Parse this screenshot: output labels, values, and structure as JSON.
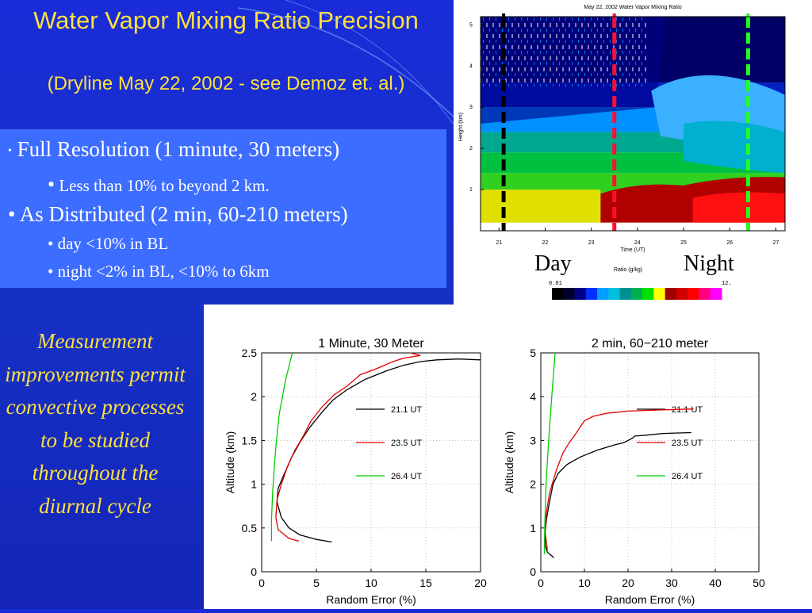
{
  "slide": {
    "title": "Water Vapor Mixing Ratio Precision",
    "subtitle": "(Dryline May 22, 2002 - see Demoz et. al.)",
    "bullets": [
      {
        "text": "Full Resolution (1 minute, 30 meters)",
        "level": 1,
        "marker": "•"
      },
      {
        "text": "Less than 10% to beyond 2 km.",
        "level": 2,
        "marker": "•"
      },
      {
        "text": "As Distributed (2 min, 60-210 meters)",
        "level": 1,
        "marker": "•"
      },
      {
        "text": "day <10% in BL",
        "level": 2,
        "marker": "•"
      },
      {
        "text": "night <2% in BL, <10% to 6km",
        "level": 2,
        "marker": "•"
      }
    ],
    "measurement_text": "Measurement improvements permit convective processes to be studied throughout the diurnal cycle",
    "colors": {
      "background": "#1a2bd8",
      "title": "#ffe040",
      "bullet_box": "#3d6dff",
      "text": "#ffffff"
    }
  },
  "heatmap": {
    "title": "May 22, 2002 Water Vapor Mixing Ratio",
    "xlabel": "Time (UT)",
    "ylabel": "Height (km)",
    "x_ticks": [
      "21",
      "22",
      "23",
      "24",
      "25",
      "26",
      "27"
    ],
    "y_ticks": [
      "1",
      "2",
      "3",
      "4",
      "5"
    ],
    "day_label": "Day",
    "night_label": "Night",
    "colorbar_label": "Ratio (g/kg)",
    "colorbar_min": "0.01",
    "colorbar_max": "12.",
    "colorbar_colors": [
      "#000000",
      "#000030",
      "#000088",
      "#0030ff",
      "#00a0ff",
      "#00c0e0",
      "#009090",
      "#00b050",
      "#00e000",
      "#ffff00",
      "#a00000",
      "#d00000",
      "#ff0000",
      "#ff0080",
      "#ff00ff"
    ],
    "markers": [
      {
        "time": 21.1,
        "color": "#000000"
      },
      {
        "time": 23.5,
        "color": "#ff1030"
      },
      {
        "time": 26.4,
        "color": "#20ff20"
      }
    ]
  },
  "chart_data": [
    {
      "type": "line",
      "title": "1 Minute, 30 Meter",
      "xlabel": "Random Error (%)",
      "ylabel": "Altitude (km)",
      "xlim": [
        0,
        20
      ],
      "ylim": [
        0,
        2.5
      ],
      "x_ticks": [
        "0",
        "5",
        "10",
        "15",
        "20"
      ],
      "y_ticks": [
        "0",
        "0.5",
        "1",
        "1.5",
        "2",
        "2.5"
      ],
      "grid": true,
      "series": [
        {
          "name": "21.1 UT",
          "color": "#000000",
          "points": [
            [
              6.4,
              0.34
            ],
            [
              5,
              0.37
            ],
            [
              3.5,
              0.42
            ],
            [
              2.5,
              0.5
            ],
            [
              1.8,
              0.62
            ],
            [
              1.4,
              0.8
            ],
            [
              1.5,
              0.95
            ],
            [
              2,
              1.1
            ],
            [
              2.7,
              1.3
            ],
            [
              3.5,
              1.48
            ],
            [
              4.4,
              1.65
            ],
            [
              5.5,
              1.82
            ],
            [
              6.5,
              1.96
            ],
            [
              7.8,
              2.08
            ],
            [
              9.5,
              2.2
            ],
            [
              11.5,
              2.3
            ],
            [
              13,
              2.36
            ],
            [
              14.5,
              2.4
            ],
            [
              16,
              2.42
            ],
            [
              18,
              2.43
            ],
            [
              20,
              2.42
            ]
          ]
        },
        {
          "name": "23.5 UT",
          "color": "#e00000",
          "points": [
            [
              3.4,
              0.35
            ],
            [
              2.5,
              0.38
            ],
            [
              1.5,
              0.48
            ],
            [
              1.3,
              0.62
            ],
            [
              1.4,
              0.82
            ],
            [
              1.8,
              1.0
            ],
            [
              2.3,
              1.18
            ],
            [
              3,
              1.38
            ],
            [
              3.8,
              1.55
            ],
            [
              4.5,
              1.72
            ],
            [
              5.5,
              1.88
            ],
            [
              6.6,
              2.02
            ],
            [
              7.8,
              2.12
            ],
            [
              9,
              2.25
            ],
            [
              10.5,
              2.32
            ],
            [
              12,
              2.4
            ],
            [
              13,
              2.44
            ],
            [
              14.5,
              2.47
            ],
            [
              13.6,
              2.5
            ]
          ]
        },
        {
          "name": "26.4 UT",
          "color": "#00cc00",
          "points": [
            [
              0.9,
              0.35
            ],
            [
              0.9,
              0.6
            ],
            [
              1,
              0.9
            ],
            [
              1.15,
              1.2
            ],
            [
              1.35,
              1.5
            ],
            [
              1.6,
              1.8
            ],
            [
              1.9,
              2.0
            ],
            [
              2.2,
              2.2
            ],
            [
              2.5,
              2.35
            ],
            [
              2.8,
              2.5
            ]
          ]
        }
      ],
      "legend": "right"
    },
    {
      "type": "line",
      "title": "2 min, 60−210 meter",
      "xlabel": "Random Error (%)",
      "ylabel": "Altitude (km)",
      "xlim": [
        0,
        50
      ],
      "ylim": [
        0,
        5
      ],
      "x_ticks": [
        "0",
        "10",
        "20",
        "30",
        "40",
        "50"
      ],
      "y_ticks": [
        "0",
        "1",
        "2",
        "3",
        "4",
        "5"
      ],
      "grid": true,
      "series": [
        {
          "name": "21.1 UT",
          "color": "#000000",
          "points": [
            [
              3,
              0.32
            ],
            [
              1.5,
              0.45
            ],
            [
              1,
              0.6
            ],
            [
              1,
              0.9
            ],
            [
              1.3,
              1.2
            ],
            [
              2,
              1.6
            ],
            [
              2.8,
              2.0
            ],
            [
              4,
              2.25
            ],
            [
              6,
              2.45
            ],
            [
              9,
              2.62
            ],
            [
              13,
              2.78
            ],
            [
              17,
              2.9
            ],
            [
              19,
              2.95
            ],
            [
              20,
              3.0
            ],
            [
              21,
              3.05
            ],
            [
              21.5,
              3.1
            ],
            [
              24,
              3.12
            ],
            [
              28,
              3.16
            ],
            [
              34.5,
              3.18
            ]
          ]
        },
        {
          "name": "23.5 UT",
          "color": "#e00000",
          "points": [
            [
              1.5,
              0.5
            ],
            [
              1,
              0.9
            ],
            [
              1.2,
              1.3
            ],
            [
              2,
              1.8
            ],
            [
              3.5,
              2.3
            ],
            [
              5,
              2.7
            ],
            [
              6.5,
              2.95
            ],
            [
              8,
              3.15
            ],
            [
              9,
              3.3
            ],
            [
              10,
              3.45
            ],
            [
              12,
              3.55
            ],
            [
              15,
              3.62
            ],
            [
              20,
              3.67
            ],
            [
              28,
              3.7
            ],
            [
              35,
              3.72
            ]
          ]
        },
        {
          "name": "26.4 UT",
          "color": "#00cc00",
          "points": [
            [
              0.8,
              0.4
            ],
            [
              0.9,
              1
            ],
            [
              1.2,
              2
            ],
            [
              1.8,
              3
            ],
            [
              2.5,
              4
            ],
            [
              3.3,
              5
            ]
          ]
        }
      ],
      "legend": "right"
    }
  ]
}
